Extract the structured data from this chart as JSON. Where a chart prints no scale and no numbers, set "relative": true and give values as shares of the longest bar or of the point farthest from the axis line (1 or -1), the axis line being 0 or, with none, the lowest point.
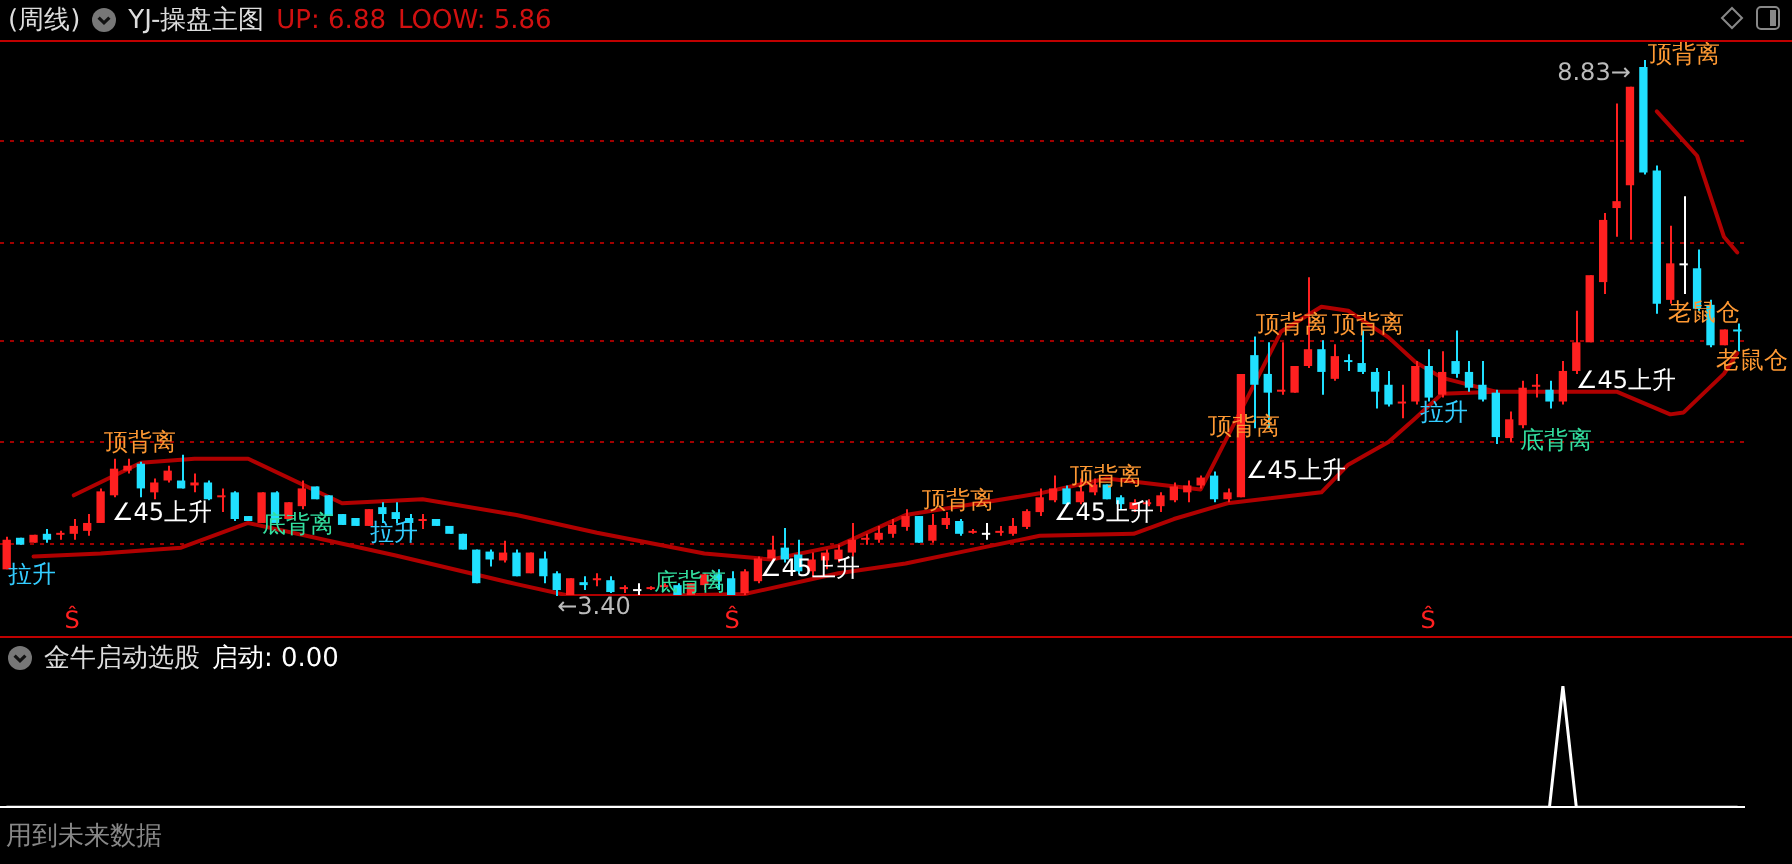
{
  "chart_data": [
    {
      "type": "candlestick",
      "title": "(周线)",
      "subtitle": "YJ-操盘主图",
      "categories": [
        null,
        null,
        null,
        null,
        null,
        null,
        null,
        null,
        null,
        null,
        null,
        null,
        null,
        null,
        null,
        null,
        null,
        null,
        null,
        null,
        null,
        null,
        null,
        null,
        null,
        null,
        null,
        null,
        null,
        null,
        null,
        null,
        null,
        null,
        null,
        null,
        null,
        null,
        null,
        null,
        null,
        null,
        null,
        null,
        null,
        null,
        null,
        null,
        null,
        null,
        null,
        null,
        null,
        null,
        null,
        null,
        null,
        null,
        null,
        null,
        null,
        null,
        null,
        null,
        null,
        null,
        null,
        null,
        null,
        null,
        null,
        null,
        null,
        null,
        null,
        null,
        null,
        null,
        null,
        null,
        null,
        null,
        null,
        null,
        null,
        null,
        null,
        null,
        null,
        null,
        null,
        null,
        null,
        null,
        null,
        null,
        null,
        null,
        null,
        null,
        null,
        null,
        null,
        null,
        null,
        null,
        null,
        null,
        null,
        null,
        null,
        null,
        null,
        null,
        null,
        null,
        null,
        null,
        null,
        null,
        null,
        null,
        null,
        null,
        null,
        null,
        null,
        null,
        null,
        null
      ],
      "ohlc": [
        [
          3.67,
          4.0,
          3.67,
          3.97
        ],
        [
          3.99,
          3.99,
          3.92,
          3.92
        ],
        [
          3.94,
          4.02,
          3.94,
          4.02
        ],
        [
          4.03,
          4.08,
          3.94,
          3.97
        ],
        [
          4.03,
          4.06,
          3.97,
          4.04
        ],
        [
          4.03,
          4.18,
          3.97,
          4.11
        ],
        [
          4.06,
          4.23,
          4.01,
          4.14
        ],
        [
          4.14,
          4.49,
          4.14,
          4.46
        ],
        [
          4.42,
          4.79,
          4.4,
          4.69
        ],
        [
          4.67,
          4.79,
          4.64,
          4.72
        ],
        [
          4.74,
          4.76,
          4.4,
          4.49
        ],
        [
          4.45,
          4.59,
          4.38,
          4.55
        ],
        [
          4.57,
          4.72,
          4.55,
          4.67
        ],
        [
          4.57,
          4.83,
          4.49,
          4.49
        ],
        [
          4.52,
          4.64,
          4.45,
          4.55
        ],
        [
          4.55,
          4.57,
          4.37,
          4.38
        ],
        [
          4.41,
          4.49,
          4.25,
          4.42
        ],
        [
          4.45,
          4.46,
          4.16,
          4.18
        ],
        [
          4.21,
          4.21,
          4.16,
          4.16
        ],
        [
          4.14,
          4.45,
          4.14,
          4.45
        ],
        [
          4.45,
          4.46,
          4.14,
          4.14
        ],
        [
          4.18,
          4.35,
          4.18,
          4.35
        ],
        [
          4.31,
          4.57,
          4.28,
          4.49
        ],
        [
          4.51,
          4.51,
          4.38,
          4.38
        ],
        [
          4.42,
          4.42,
          4.21,
          4.21
        ],
        [
          4.23,
          4.23,
          4.12,
          4.12
        ],
        [
          4.19,
          4.19,
          4.11,
          4.11
        ],
        [
          4.11,
          4.28,
          4.11,
          4.28
        ],
        [
          4.3,
          4.35,
          4.14,
          4.23
        ],
        [
          4.25,
          4.35,
          4.14,
          4.18
        ],
        [
          4.19,
          4.23,
          3.97,
          4.14
        ],
        [
          4.17,
          4.23,
          4.08,
          4.18
        ],
        [
          4.18,
          4.18,
          4.11,
          4.11
        ],
        [
          4.11,
          4.11,
          4.03,
          4.03
        ],
        [
          4.03,
          4.03,
          3.87,
          3.87
        ],
        [
          3.87,
          3.87,
          3.53,
          3.53
        ],
        [
          3.85,
          3.87,
          3.7,
          3.77
        ],
        [
          3.76,
          3.96,
          3.74,
          3.84
        ],
        [
          3.84,
          3.87,
          3.6,
          3.6
        ],
        [
          3.63,
          3.84,
          3.63,
          3.84
        ],
        [
          3.78,
          3.85,
          3.53,
          3.6
        ],
        [
          3.63,
          3.65,
          3.4,
          3.46
        ],
        [
          3.41,
          3.58,
          3.41,
          3.58
        ],
        [
          3.54,
          3.6,
          3.46,
          3.51
        ],
        [
          3.57,
          3.63,
          3.5,
          3.58
        ],
        [
          3.56,
          3.6,
          3.43,
          3.44
        ],
        [
          3.48,
          3.51,
          3.43,
          3.49
        ],
        [
          3.47,
          3.53,
          3.41,
          3.47
        ],
        [
          3.48,
          3.5,
          3.46,
          3.49
        ],
        [
          3.5,
          3.53,
          3.49,
          3.51
        ],
        [
          3.51,
          3.53,
          3.41,
          3.41
        ],
        [
          3.41,
          3.53,
          3.41,
          3.53
        ],
        [
          3.51,
          3.63,
          3.46,
          3.62
        ],
        [
          3.62,
          3.67,
          3.46,
          3.56
        ],
        [
          3.58,
          3.65,
          3.41,
          3.41
        ],
        [
          3.43,
          3.67,
          3.41,
          3.65
        ],
        [
          3.55,
          3.8,
          3.53,
          3.78
        ],
        [
          3.78,
          4.01,
          3.77,
          3.87
        ],
        [
          3.89,
          4.09,
          3.74,
          3.77
        ],
        [
          3.82,
          3.97,
          3.62,
          3.65
        ],
        [
          3.65,
          3.84,
          3.6,
          3.77
        ],
        [
          3.76,
          3.87,
          3.67,
          3.84
        ],
        [
          3.77,
          3.92,
          3.74,
          3.87
        ],
        [
          3.84,
          4.14,
          3.8,
          3.97
        ],
        [
          3.98,
          4.03,
          3.92,
          3.99
        ],
        [
          3.97,
          4.11,
          3.94,
          4.04
        ],
        [
          4.03,
          4.18,
          3.99,
          4.12
        ],
        [
          4.1,
          4.28,
          4.06,
          4.21
        ],
        [
          4.21,
          4.21,
          3.94,
          3.94
        ],
        [
          3.96,
          4.23,
          3.94,
          4.12
        ],
        [
          4.12,
          4.25,
          4.08,
          4.19
        ],
        [
          4.16,
          4.18,
          4.01,
          4.03
        ],
        [
          4.05,
          4.08,
          4.03,
          4.06
        ],
        [
          4.04,
          4.14,
          3.97,
          4.04
        ],
        [
          4.05,
          4.11,
          4.01,
          4.06
        ],
        [
          4.03,
          4.19,
          4.01,
          4.11
        ],
        [
          4.1,
          4.28,
          4.08,
          4.26
        ],
        [
          4.25,
          4.49,
          4.21,
          4.4
        ],
        [
          4.37,
          4.62,
          4.35,
          4.49
        ],
        [
          4.49,
          4.52,
          4.31,
          4.33
        ],
        [
          4.35,
          4.59,
          4.33,
          4.46
        ],
        [
          4.45,
          4.59,
          4.42,
          4.53
        ],
        [
          4.53,
          4.53,
          4.38,
          4.38
        ],
        [
          4.4,
          4.42,
          4.28,
          4.33
        ],
        [
          4.28,
          4.38,
          4.25,
          4.35
        ],
        [
          4.34,
          4.38,
          4.31,
          4.35
        ],
        [
          4.31,
          4.45,
          4.25,
          4.42
        ],
        [
          4.37,
          4.55,
          4.35,
          4.51
        ],
        [
          4.45,
          4.57,
          4.35,
          4.52
        ],
        [
          4.52,
          4.62,
          4.49,
          4.6
        ],
        [
          4.62,
          4.66,
          4.35,
          4.38
        ],
        [
          4.38,
          4.49,
          4.35,
          4.45
        ],
        [
          4.4,
          5.65,
          4.4,
          5.65
        ],
        [
          5.84,
          6.03,
          5.1,
          5.54
        ],
        [
          5.65,
          5.97,
          5.1,
          5.46
        ],
        [
          5.48,
          5.97,
          5.44,
          5.49
        ],
        [
          5.46,
          5.73,
          5.46,
          5.73
        ],
        [
          5.73,
          6.63,
          5.71,
          5.9
        ],
        [
          5.9,
          5.99,
          5.44,
          5.67
        ],
        [
          5.6,
          5.95,
          5.58,
          5.83
        ],
        [
          5.79,
          5.85,
          5.68,
          5.78
        ],
        [
          5.76,
          6.09,
          5.65,
          5.67
        ],
        [
          5.67,
          5.71,
          5.3,
          5.47
        ],
        [
          5.54,
          5.68,
          5.32,
          5.34
        ],
        [
          5.36,
          5.54,
          5.2,
          5.37
        ],
        [
          5.37,
          5.78,
          5.34,
          5.73
        ],
        [
          5.73,
          5.9,
          5.37,
          5.41
        ],
        [
          5.44,
          5.88,
          5.41,
          5.67
        ],
        [
          5.78,
          6.09,
          5.61,
          5.65
        ],
        [
          5.67,
          5.78,
          5.47,
          5.51
        ],
        [
          5.54,
          5.78,
          5.37,
          5.39
        ],
        [
          5.46,
          5.49,
          4.94,
          5.01
        ],
        [
          5.0,
          5.27,
          4.96,
          5.19
        ],
        [
          5.13,
          5.58,
          5.1,
          5.51
        ],
        [
          5.53,
          5.65,
          5.41,
          5.54
        ],
        [
          5.49,
          5.58,
          5.3,
          5.37
        ],
        [
          5.37,
          5.78,
          5.34,
          5.68
        ],
        [
          5.68,
          6.29,
          5.65,
          5.97
        ],
        [
          5.97,
          6.65,
          5.97,
          6.65
        ],
        [
          6.58,
          7.28,
          6.46,
          7.21
        ],
        [
          7.33,
          8.39,
          7.04,
          7.4
        ],
        [
          7.56,
          8.56,
          7.01,
          8.56
        ],
        [
          8.76,
          8.83,
          7.67,
          7.69
        ],
        [
          7.71,
          7.76,
          6.26,
          6.36
        ],
        [
          6.4,
          7.15,
          6.36,
          6.77
        ],
        [
          6.77,
          7.45,
          6.46,
          6.77
        ],
        [
          6.72,
          6.91,
          6.29,
          6.31
        ],
        [
          6.35,
          6.4,
          5.92,
          5.94
        ],
        [
          5.94,
          6.1,
          5.94,
          6.1
        ],
        [
          6.1,
          6.16,
          5.88,
          6.09
        ]
      ],
      "colors": [
        "#ff2020",
        "#20e0ff",
        "#ff2020",
        "#20e0ff",
        "#ff2020",
        "#ff2020",
        "#ff2020",
        "#ff2020",
        "#ff2020",
        "#ff2020",
        "#20e0ff",
        "#ff2020",
        "#ff2020",
        "#20e0ff",
        "#ff2020",
        "#20e0ff",
        "#ff2020",
        "#20e0ff",
        "#20e0ff",
        "#ff2020",
        "#20e0ff",
        "#ff2020",
        "#ff2020",
        "#20e0ff",
        "#20e0ff",
        "#20e0ff",
        "#20e0ff",
        "#ff2020",
        "#20e0ff",
        "#20e0ff",
        "#20e0ff",
        "#ff2020",
        "#20e0ff",
        "#20e0ff",
        "#20e0ff",
        "#20e0ff",
        "#20e0ff",
        "#ff2020",
        "#20e0ff",
        "#ff2020",
        "#20e0ff",
        "#20e0ff",
        "#ff2020",
        "#20e0ff",
        "#ff2020",
        "#20e0ff",
        "#ff2020",
        "#ffffff",
        "#ff2020",
        "#ff2020",
        "#20e0ff",
        "#ff2020",
        "#ff2020",
        "#20e0ff",
        "#20e0ff",
        "#ff2020",
        "#ff2020",
        "#ff2020",
        "#20e0ff",
        "#20e0ff",
        "#ff2020",
        "#ff2020",
        "#ff2020",
        "#ff2020",
        "#ff2020",
        "#ff2020",
        "#ff2020",
        "#ff2020",
        "#20e0ff",
        "#ff2020",
        "#ff2020",
        "#20e0ff",
        "#ff2020",
        "#ffffff",
        "#ff2020",
        "#ff2020",
        "#ff2020",
        "#ff2020",
        "#ff2020",
        "#20e0ff",
        "#ff2020",
        "#ff2020",
        "#20e0ff",
        "#20e0ff",
        "#ff2020",
        "#ff2020",
        "#ff2020",
        "#ff2020",
        "#ff2020",
        "#ff2020",
        "#20e0ff",
        "#ff2020",
        "#ff2020",
        "#20e0ff",
        "#20e0ff",
        "#ff2020",
        "#ff2020",
        "#ff2020",
        "#20e0ff",
        "#ff2020",
        "#20e0ff",
        "#20e0ff",
        "#20e0ff",
        "#20e0ff",
        "#ff2020",
        "#ff2020",
        "#20e0ff",
        "#ff2020",
        "#20e0ff",
        "#20e0ff",
        "#20e0ff",
        "#20e0ff",
        "#ff2020",
        "#ff2020",
        "#ff2020",
        "#20e0ff",
        "#ff2020",
        "#ff2020",
        "#ff2020",
        "#ff2020",
        "#ff2020",
        "#ff2020",
        "#20e0ff",
        "#20e0ff",
        "#ff2020",
        "#ffffff",
        "#20e0ff",
        "#20e0ff",
        "#ff2020",
        "#20e0ff"
      ],
      "series": [
        {
          "type": "line",
          "color": "#b00000",
          "values": [
            null,
            null,
            null,
            null,
            null,
            4.42,
            null,
            null,
            null,
            null,
            4.75,
            null,
            null,
            null,
            4.79,
            null,
            null,
            null,
            4.79,
            null,
            null,
            null,
            null,
            null,
            null,
            4.34,
            null,
            null,
            null,
            null,
            null,
            4.38,
            null,
            null,
            null,
            null,
            null,
            null,
            4.22,
            null,
            null,
            null,
            null,
            null,
            4.04,
            null,
            null,
            null,
            null,
            null,
            null,
            null,
            3.83,
            null,
            null,
            null,
            null,
            3.77,
            null,
            null,
            null,
            null,
            3.91,
            null,
            null,
            null,
            null,
            4.22,
            null,
            null,
            null,
            null,
            null,
            null,
            null,
            null,
            null,
            4.44,
            null,
            null,
            null,
            null,
            4.59,
            null,
            null,
            null,
            null,
            null,
            null,
            4.48,
            null,
            null,
            null,
            null,
            null,
            6.08,
            null,
            null,
            6.33,
            null,
            6.29,
            null,
            null,
            6.02,
            null,
            5.77,
            null,
            5.61,
            null,
            null,
            null,
            5.47,
            null,
            null,
            null,
            null,
            null,
            null,
            null,
            null,
            null,
            null,
            null,
            null,
            null,
            null,
            null,
            null,
            null,
            null
          ]
        },
        {
          "type": "line",
          "color": "#b00000",
          "values": [
            null,
            null,
            3.8,
            null,
            null,
            null,
            null,
            3.83,
            null,
            null,
            null,
            null,
            null,
            3.89,
            null,
            null,
            null,
            null,
            4.14,
            null,
            null,
            null,
            null,
            null,
            null,
            null,
            null,
            null,
            null,
            3.81,
            null,
            null,
            null,
            null,
            null,
            null,
            null,
            null,
            3.52,
            null,
            null,
            null,
            3.4,
            null,
            null,
            null,
            null,
            null,
            3.4,
            null,
            null,
            null,
            null,
            null,
            null,
            3.42,
            null,
            null,
            null,
            null,
            null,
            null,
            3.63,
            null,
            null,
            null,
            null,
            3.73,
            null,
            null,
            null,
            null,
            3.87,
            null,
            null,
            null,
            null,
            4.01,
            null,
            null,
            null,
            null,
            null,
            null,
            4.03,
            null,
            null,
            4.18,
            null,
            null,
            null,
            4.34,
            null,
            null,
            null,
            null,
            null,
            null,
            4.45,
            null,
            4.73,
            null,
            null,
            4.96,
            null,
            5.2,
            null,
            5.45,
            null,
            null,
            null,
            5.47,
            null,
            null,
            null,
            null,
            null,
            null,
            5.47,
            null,
            5.47,
            null,
            null,
            null,
            5.24,
            5.26,
            null,
            null,
            5.65,
            5.86
          ]
        },
        {
          "type": "line",
          "color": "#b00000",
          "values": [
            null,
            null,
            null,
            null,
            null,
            null,
            null,
            null,
            null,
            null,
            null,
            null,
            null,
            null,
            null,
            null,
            null,
            null,
            null,
            null,
            null,
            null,
            null,
            null,
            null,
            null,
            null,
            null,
            null,
            null,
            null,
            null,
            null,
            null,
            null,
            null,
            null,
            null,
            null,
            null,
            null,
            null,
            null,
            null,
            null,
            null,
            null,
            null,
            null,
            null,
            null,
            null,
            null,
            null,
            null,
            null,
            null,
            null,
            null,
            null,
            null,
            null,
            null,
            null,
            null,
            null,
            null,
            null,
            null,
            null,
            null,
            null,
            null,
            null,
            null,
            null,
            null,
            null,
            null,
            null,
            null,
            null,
            null,
            null,
            null,
            null,
            null,
            null,
            null,
            null,
            null,
            null,
            null,
            null,
            null,
            null,
            null,
            null,
            null,
            null,
            null,
            null,
            null,
            null,
            null,
            null,
            null,
            null,
            null,
            null,
            null,
            null,
            null,
            null,
            null,
            null,
            null,
            null,
            null,
            null,
            null,
            null,
            null,
            8.31,
            null,
            null,
            7.86,
            null,
            7.04,
            6.88
          ]
        }
      ],
      "yticks": [
        {
          "value": 8.01,
          "label": null
        },
        {
          "value": 6.98,
          "label": null
        },
        {
          "value": 5.98,
          "label": null
        },
        {
          "value": 4.96,
          "label": null
        },
        {
          "value": 3.93,
          "label": null
        }
      ],
      "grid": "y",
      "tick_labels": false,
      "marker": "none",
      "annotations": [
        "UP: 6.88",
        "LOOW: 5.86",
        "顶背离",
        "∠45上升",
        "拉升",
        "底背离",
        "拉升",
        "←3.40",
        "底背离",
        "∠45上升",
        "顶背离",
        "顶背离",
        "∠45上升",
        "顶背离",
        "∠45上升",
        "顶背离",
        "顶背离",
        "拉升",
        "底背离",
        "∠45上升",
        "8.83→",
        "顶背离",
        "老鼠仓",
        "老鼠仓",
        "Ŝ",
        "Ŝ",
        "Ŝ"
      ]
    },
    {
      "type": "line",
      "title": "金牛启动选股",
      "relative": true,
      "categories": [
        null,
        null,
        null,
        null,
        null,
        null,
        null,
        null,
        null,
        null,
        null,
        null,
        null,
        null,
        null,
        null,
        null,
        null,
        null,
        null,
        null,
        null,
        null,
        null,
        null,
        null,
        null,
        null,
        null,
        null,
        null,
        null,
        null,
        null,
        null,
        null,
        null,
        null,
        null,
        null,
        null,
        null,
        null,
        null,
        null,
        null,
        null,
        null,
        null,
        null,
        null,
        null,
        null,
        null,
        null,
        null,
        null,
        null,
        null,
        null,
        null,
        null,
        null,
        null,
        null,
        null,
        null,
        null,
        null,
        null,
        null,
        null,
        null,
        null,
        null,
        null,
        null,
        null,
        null,
        null,
        null,
        null,
        null,
        null,
        null,
        null,
        null,
        null,
        null,
        null,
        null,
        null,
        null,
        null,
        null,
        null,
        null,
        null,
        null,
        null,
        null,
        null,
        null,
        null,
        null,
        null,
        null,
        null,
        null,
        null,
        null,
        null,
        null,
        null,
        null,
        null,
        null,
        null,
        null,
        null,
        null,
        null,
        null,
        null,
        null,
        null,
        null,
        null,
        null,
        null
      ],
      "series": [
        {
          "color": "#ffffff",
          "values": [
            0,
            0,
            0,
            0,
            0,
            0,
            0,
            0,
            0,
            0,
            0,
            0,
            0,
            0,
            0,
            0,
            0,
            0,
            0,
            0,
            0,
            0,
            0,
            0,
            0,
            0,
            0,
            0,
            0,
            0,
            0,
            0,
            0,
            0,
            0,
            0,
            0,
            0,
            0,
            0,
            0,
            0,
            0,
            0,
            0,
            0,
            0,
            0,
            0,
            0,
            0,
            0,
            0,
            0,
            0,
            0,
            0,
            0,
            0,
            0,
            0,
            0,
            0,
            0,
            0,
            0,
            0,
            0,
            0,
            0,
            0,
            0,
            0,
            0,
            0,
            0,
            0,
            0,
            0,
            0,
            0,
            0,
            0,
            0,
            0,
            0,
            0,
            0,
            0,
            0,
            0,
            0,
            0,
            0,
            0,
            0,
            0,
            0,
            0,
            0,
            0,
            0,
            0,
            0,
            0,
            0,
            0,
            0,
            0,
            0,
            0,
            0,
            0,
            0,
            0,
            0,
            1,
            0,
            0,
            0,
            0,
            0,
            0,
            0,
            0,
            0,
            0,
            0,
            0,
            0
          ]
        }
      ],
      "annotations": [
        "启动: 0.00",
        "用到未来数据"
      ]
    }
  ]
}
